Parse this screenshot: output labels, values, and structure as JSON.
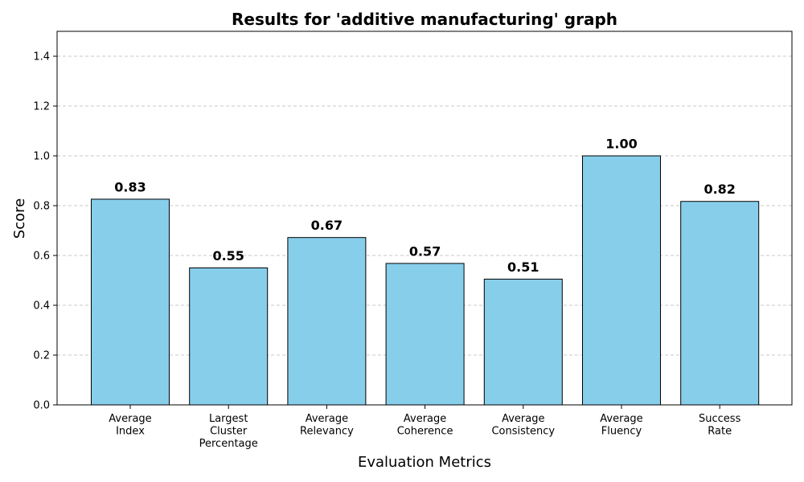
{
  "chart_data": {
    "type": "bar",
    "title": "Results for 'additive manufacturing' graph",
    "xlabel": "Evaluation Metrics",
    "ylabel": "Score",
    "categories": [
      [
        "Average",
        "Index"
      ],
      [
        "Largest",
        "Cluster",
        "Percentage"
      ],
      [
        "Average",
        "Relevancy"
      ],
      [
        "Average",
        "Coherence"
      ],
      [
        "Average",
        "Consistency"
      ],
      [
        "Average",
        "Fluency"
      ],
      [
        "Success",
        "Rate"
      ]
    ],
    "values": [
      0.826,
      0.55,
      0.672,
      0.568,
      0.505,
      1.0,
      0.817
    ],
    "value_labels": [
      "0.83",
      "0.55",
      "0.67",
      "0.57",
      "0.51",
      "1.00",
      "0.82"
    ],
    "ylim": [
      0,
      1.5
    ],
    "yticks": [
      0.0,
      0.2,
      0.4,
      0.6,
      0.8,
      1.0,
      1.2,
      1.4
    ],
    "ytick_labels": [
      "0.0",
      "0.2",
      "0.4",
      "0.6",
      "0.8",
      "1.0",
      "1.2",
      "1.4"
    ],
    "grid": "y-dashed",
    "bar_color": "#87CEEB",
    "bar_edge_color": "#000000"
  }
}
